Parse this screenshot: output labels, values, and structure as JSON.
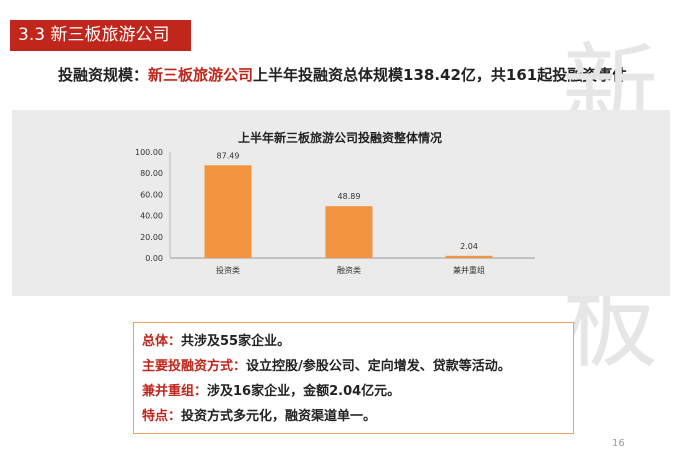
{
  "slide": {
    "section_title": "3.3 新三板旅游公司",
    "headline": {
      "prefix": "投融资规模：",
      "highlight": "新三板旅游公司",
      "rest": "上半年投融资总体规模138.42亿，共161起投融资事件"
    },
    "watermark": "新三板",
    "page_number": "16",
    "colors": {
      "accent_red": "#c0261c",
      "bar": "#f39540",
      "panel": "#ebebeb"
    }
  },
  "info": [
    {
      "key": "总体：",
      "text": "共涉及55家企业。"
    },
    {
      "key": "主要投融资方式：",
      "text": "设立控股/参股公司、定向增发、贷款等活动。"
    },
    {
      "key": "兼并重组：",
      "text": "涉及16家企业，金额2.04亿元。"
    },
    {
      "key": "特点：",
      "text": "投资方式多元化，融资渠道单一。"
    }
  ],
  "chart_data": {
    "type": "bar",
    "title": "上半年新三板旅游公司投融资整体情况",
    "categories": [
      "投资类",
      "融资类",
      "兼并重组"
    ],
    "values": [
      87.49,
      48.89,
      2.04
    ],
    "data_labels": [
      "87.49",
      "48.89",
      "2.04"
    ],
    "ylim": [
      0,
      100
    ],
    "yticks": [
      "0.00",
      "20.00",
      "40.00",
      "60.00",
      "80.00",
      "100.00"
    ],
    "grid": false,
    "legend": "none",
    "xlabel": "",
    "ylabel": ""
  }
}
